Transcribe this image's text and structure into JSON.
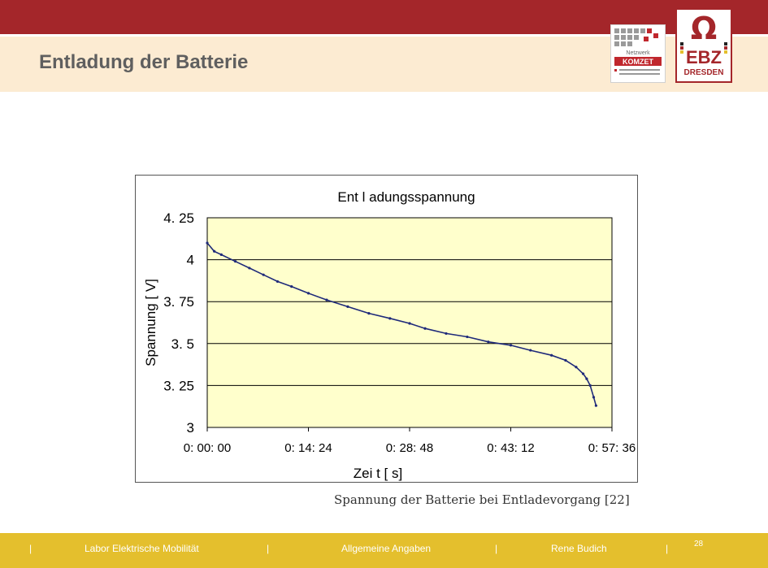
{
  "slide": {
    "title": "Entladung der Batterie",
    "caption": "Spannung der Batterie bei Entladevorgang [22]"
  },
  "logos": {
    "komzet": {
      "line1": "Netzwerk",
      "line2": "KOMZET"
    },
    "ebz": {
      "symbol": "Ω",
      "line1": "EBZ",
      "line2": "DRESDEN"
    }
  },
  "footer": {
    "sep": "|",
    "item1": "Labor Elektrische Mobilität",
    "item2": "Allgemeine Angaben",
    "item3": "Rene Budich",
    "page": "28"
  },
  "colors": {
    "accent": "#a4262a",
    "header_bg": "#fcebd2",
    "footer": "#e4bf2d",
    "plot_bg": "#ffffcc",
    "line": "#1f2a7a"
  },
  "chart_data": {
    "type": "line",
    "title": "Ent l adungsspannung",
    "xlabel": "Zei t   [ s]",
    "ylabel": "Spannung [ V]",
    "yticks": [
      "3",
      "3. 25",
      "3. 5",
      "3. 75",
      "4",
      "4. 25"
    ],
    "ytick_values": [
      3,
      3.25,
      3.5,
      3.75,
      4,
      4.25
    ],
    "xticks": [
      "0: 00: 00",
      "0: 14: 24",
      "0: 28: 48",
      "0: 43: 12",
      "0: 57: 36"
    ],
    "xtick_values": [
      "0:00:00",
      "0:14:24",
      "0:28:48",
      "0:43:12",
      "0:57:36"
    ],
    "ylim": [
      3,
      4.25
    ],
    "grid": true,
    "series": [
      {
        "x": [
          "0:00:00",
          "0:01:00",
          "0:02:00",
          "0:04:00",
          "0:06:00",
          "0:08:00",
          "0:10:00",
          "0:12:00",
          "0:14:24",
          "0:17:00",
          "0:20:00",
          "0:23:00",
          "0:26:00",
          "0:28:48",
          "0:31:00",
          "0:34:00",
          "0:37:00",
          "0:40:00",
          "0:43:12",
          "0:46:00",
          "0:49:00",
          "0:51:00",
          "0:52:30",
          "0:53:30",
          "0:54:00",
          "0:54:30",
          "0:55:00",
          "0:55:20"
        ],
        "values": [
          4.1,
          4.05,
          4.03,
          3.99,
          3.95,
          3.91,
          3.87,
          3.84,
          3.8,
          3.76,
          3.72,
          3.68,
          3.65,
          3.62,
          3.59,
          3.56,
          3.54,
          3.51,
          3.49,
          3.46,
          3.43,
          3.4,
          3.36,
          3.32,
          3.29,
          3.25,
          3.18,
          3.13
        ]
      }
    ]
  }
}
